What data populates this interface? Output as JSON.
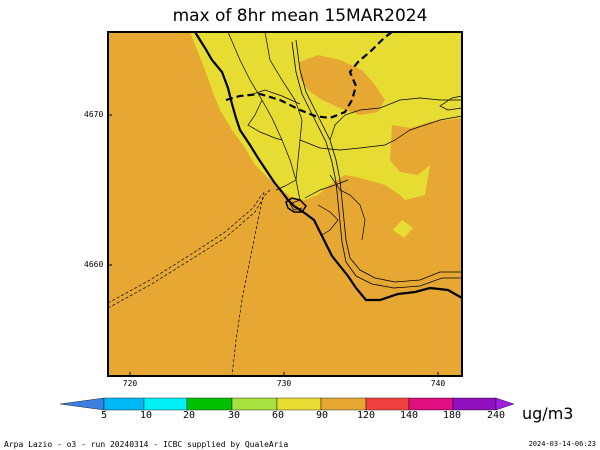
{
  "title": "max of 8hr mean 15MAR2024",
  "y_ticks": [
    "4670",
    "4660"
  ],
  "x_ticks": [
    "720",
    "730",
    "740"
  ],
  "colorbar": {
    "ticks": [
      "5",
      "10",
      "20",
      "30",
      "60",
      "90",
      "120",
      "140",
      "180",
      "240"
    ],
    "unit": "ug/m3",
    "colors": [
      "#3b7fe0",
      "#00b8f5",
      "#00f0f5",
      "#00c000",
      "#a8e040",
      "#e6dc32",
      "#e6a832",
      "#f04040",
      "#e01080",
      "#9010c0",
      "#a020e0"
    ]
  },
  "map_colors": {
    "background": "#e6a832",
    "high": "#e6dc32"
  },
  "footer": {
    "left": "Arpa Lazio - o3 - run 20240314 - ICBC supplied by QualeAria",
    "right": "2024-03-14-06:23"
  }
}
